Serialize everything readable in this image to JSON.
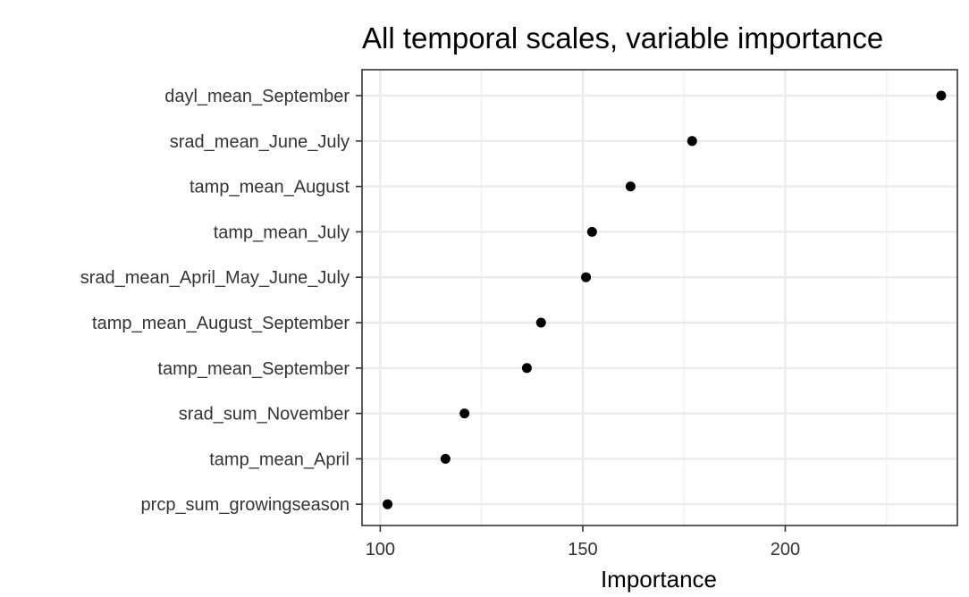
{
  "chart_data": {
    "type": "scatter",
    "title": "All temporal scales, variable importance",
    "xlabel": "Importance",
    "ylabel": "",
    "xlim": [
      95.5,
      242.5
    ],
    "x_ticks": [
      100,
      150,
      200
    ],
    "x_minor_ticks": [
      125,
      175,
      225
    ],
    "grid": true,
    "legend": "none",
    "point_color": "#000000",
    "categories": [
      "dayl_mean_September",
      "srad_mean_June_July",
      "tamp_mean_August",
      "tamp_mean_July",
      "srad_mean_April_May_June_July",
      "tamp_mean_August_September",
      "tamp_mean_September",
      "srad_sum_November",
      "tamp_mean_April",
      "prcp_sum_growingseason"
    ],
    "values": [
      238.5,
      177,
      161.8,
      152.3,
      150.8,
      139.7,
      136.2,
      120.8,
      116.1,
      101.8
    ]
  }
}
